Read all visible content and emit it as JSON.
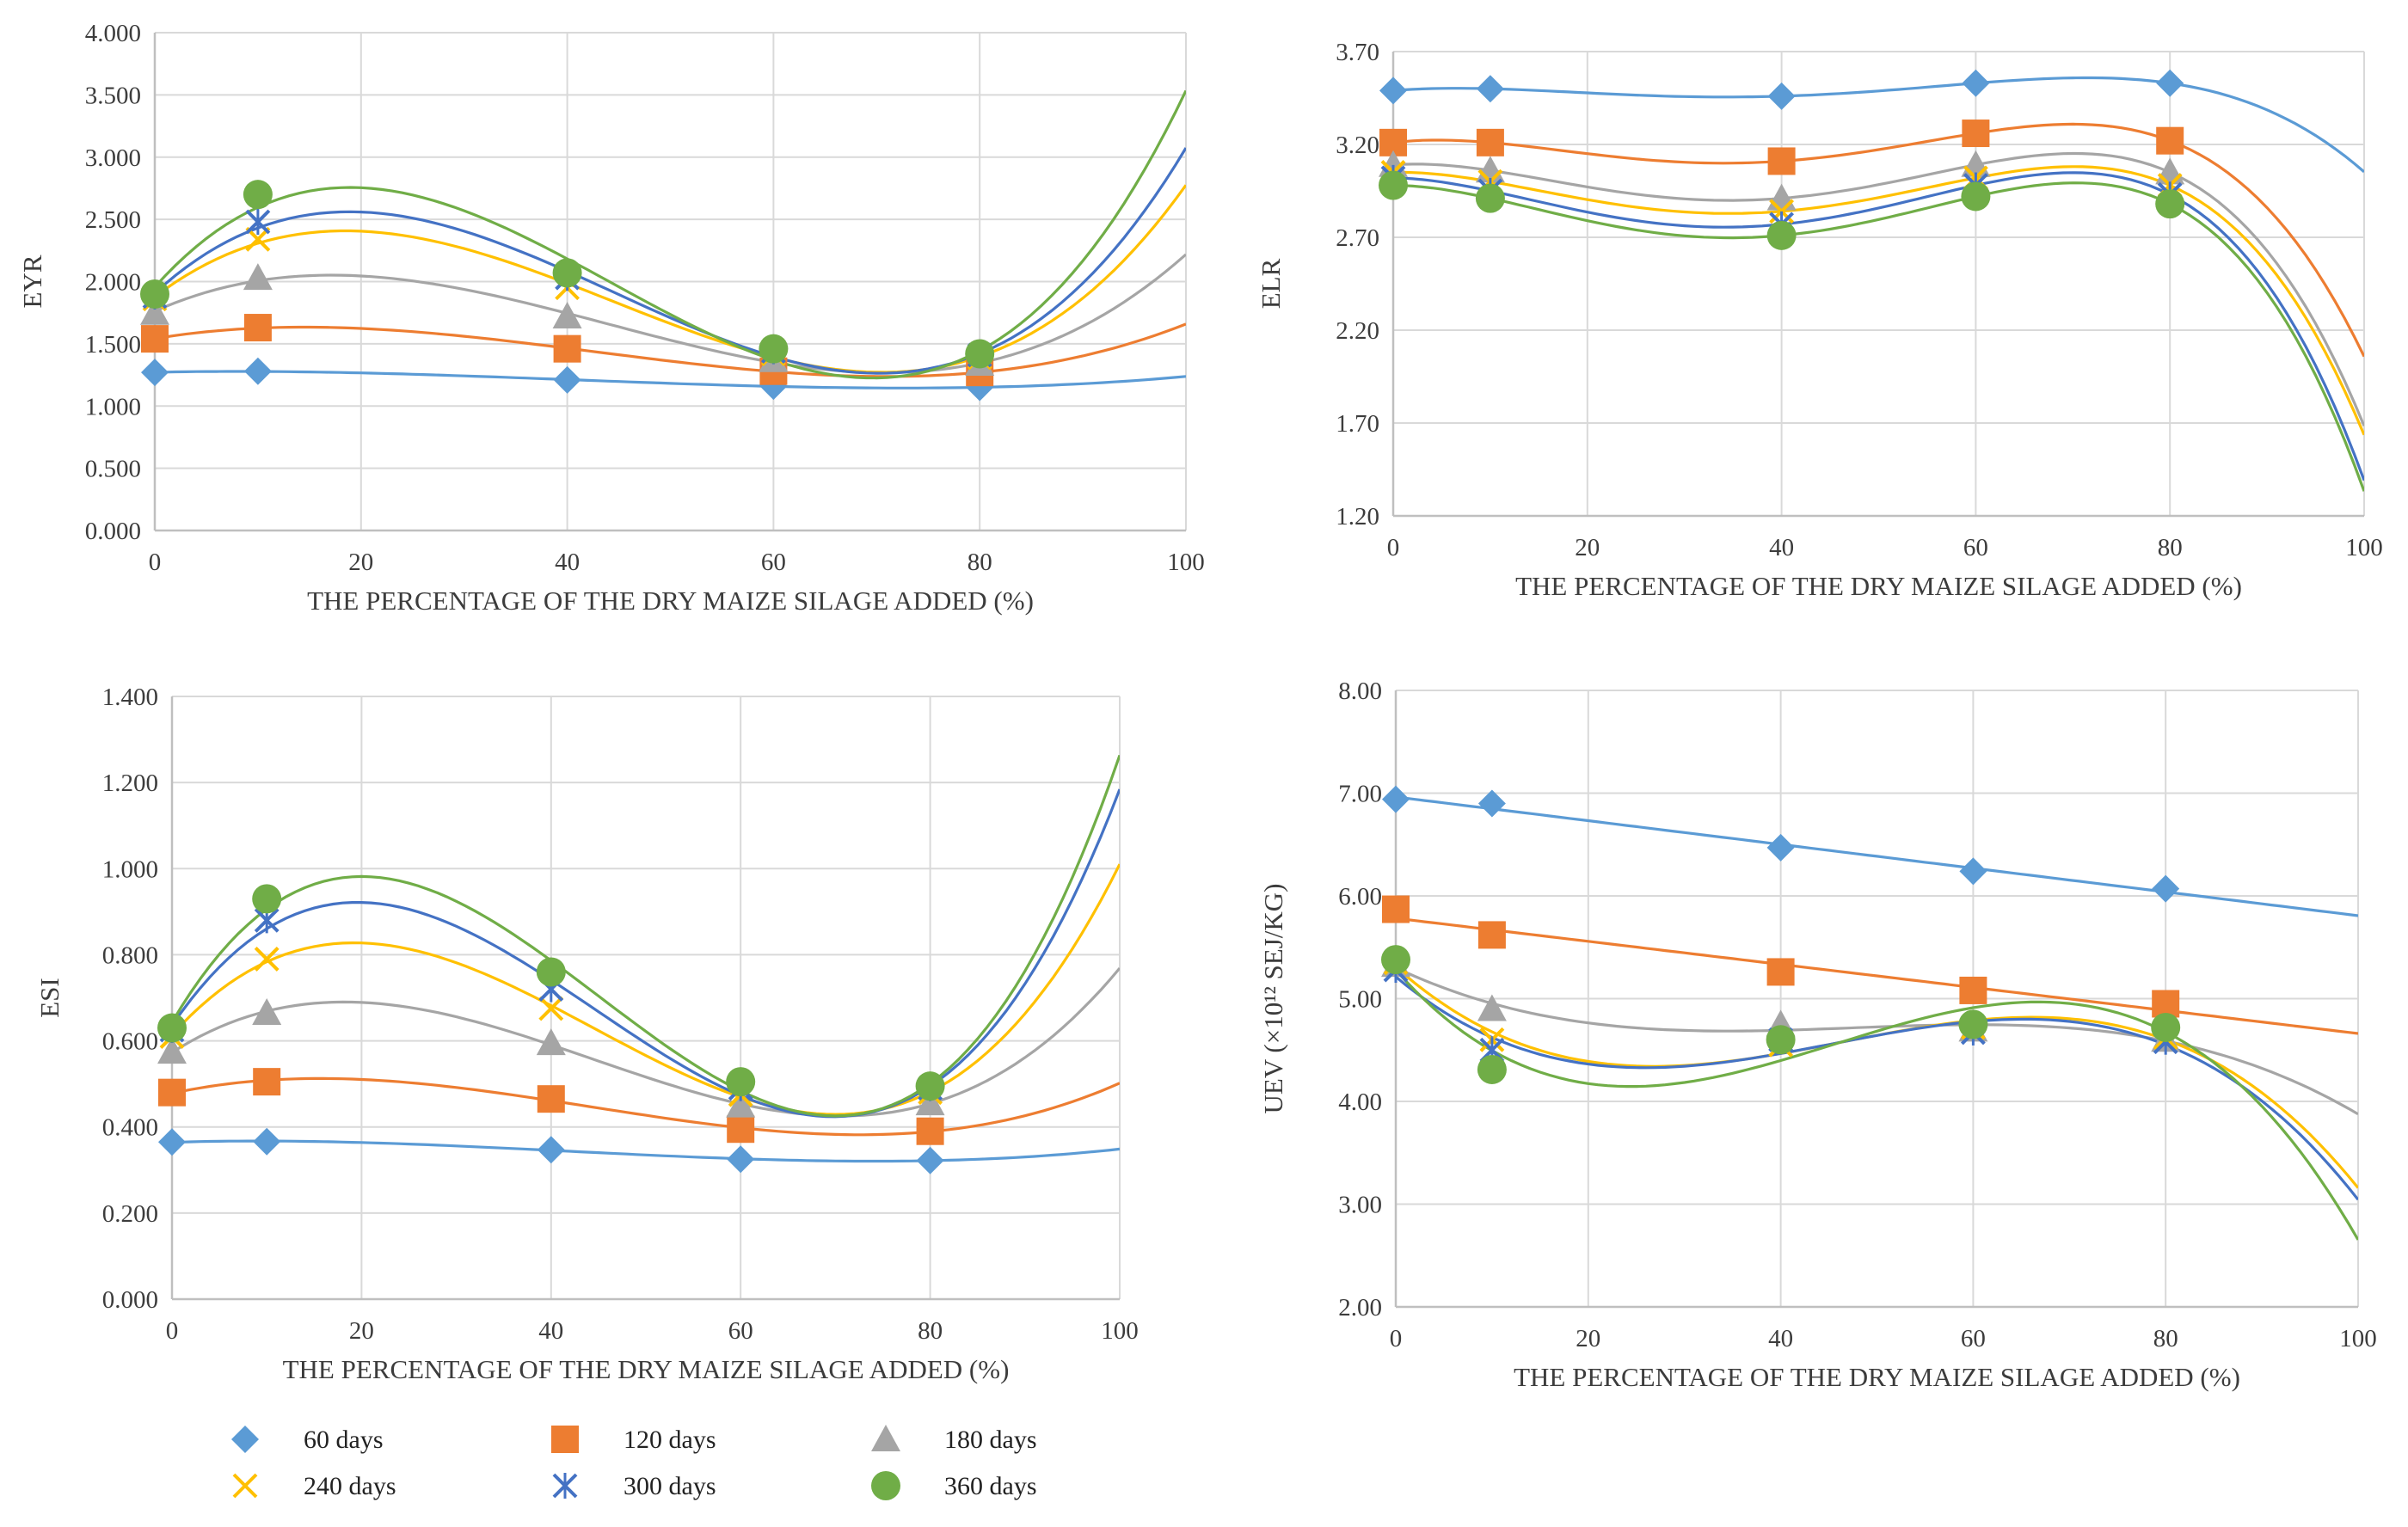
{
  "series_styles": [
    {
      "name": "60 days",
      "color": "#5b9bd5",
      "marker": "diamond"
    },
    {
      "name": "120 days",
      "color": "#ed7d31",
      "marker": "square"
    },
    {
      "name": "180 days",
      "color": "#a5a5a5",
      "marker": "triangle"
    },
    {
      "name": "240 days",
      "color": "#ffc000",
      "marker": "x"
    },
    {
      "name": "300 days",
      "color": "#4472c4",
      "marker": "star"
    },
    {
      "name": "360 days",
      "color": "#70ad47",
      "marker": "circle"
    }
  ],
  "legend": {
    "items": [
      "60 days",
      "120 days",
      "180 days",
      "240 days",
      "300 days",
      "360 days"
    ]
  },
  "chart_data": [
    {
      "type": "scatter",
      "title": "",
      "xlabel": "THE PERCENTAGE OF THE DRY MAIZE SILAGE ADDED (%)",
      "ylabel": "EYR",
      "xlim": [
        0,
        100
      ],
      "ylim": [
        0,
        4
      ],
      "x_ticks": [
        0,
        20,
        40,
        60,
        80,
        100
      ],
      "y_ticks": [
        0,
        0.5,
        1,
        1.5,
        2,
        2.5,
        3,
        3.5,
        4
      ],
      "y_tick_labels": [
        "0.000",
        "0.500",
        "1.000",
        "1.500",
        "2.000",
        "2.500",
        "3.000",
        "3.500",
        "4.000"
      ],
      "trendline": "polynomial order 3",
      "x": [
        0,
        10,
        40,
        60,
        80
      ],
      "series": [
        {
          "name": "60 days",
          "values": [
            1.27,
            1.28,
            1.21,
            1.16,
            1.15
          ]
        },
        {
          "name": "120 days",
          "values": [
            1.54,
            1.63,
            1.46,
            1.28,
            1.27
          ]
        },
        {
          "name": "180 days",
          "values": [
            1.75,
            2.03,
            1.72,
            1.37,
            1.34
          ]
        },
        {
          "name": "240 days",
          "values": [
            1.86,
            2.34,
            1.95,
            1.42,
            1.39
          ]
        },
        {
          "name": "300 days",
          "values": [
            1.88,
            2.48,
            2.03,
            1.44,
            1.41
          ]
        },
        {
          "name": "360 days",
          "values": [
            1.9,
            2.7,
            2.07,
            1.46,
            1.42
          ]
        }
      ]
    },
    {
      "type": "scatter",
      "title": "",
      "xlabel": "THE PERCENTAGE OF THE DRY MAIZE SILAGE ADDED (%)",
      "ylabel": "ELR",
      "xlim": [
        0,
        100
      ],
      "ylim": [
        1.2,
        3.7
      ],
      "x_ticks": [
        0,
        20,
        40,
        60,
        80,
        100
      ],
      "y_ticks": [
        1.2,
        1.7,
        2.2,
        2.7,
        3.2,
        3.7
      ],
      "y_tick_labels": [
        "1.20",
        "1.70",
        "2.20",
        "2.70",
        "3.20",
        "3.70"
      ],
      "trendline": "polynomial order 4",
      "x": [
        0,
        10,
        40,
        60,
        80
      ],
      "series": [
        {
          "name": "60 days",
          "values": [
            3.49,
            3.5,
            3.46,
            3.53,
            3.53
          ]
        },
        {
          "name": "120 days",
          "values": [
            3.21,
            3.21,
            3.11,
            3.26,
            3.22
          ]
        },
        {
          "name": "180 days",
          "values": [
            3.09,
            3.06,
            2.91,
            3.09,
            3.05
          ]
        },
        {
          "name": "240 days",
          "values": [
            3.05,
            3.0,
            2.84,
            3.02,
            2.98
          ]
        },
        {
          "name": "300 days",
          "values": [
            3.02,
            2.95,
            2.77,
            2.98,
            2.93
          ]
        },
        {
          "name": "360 days",
          "values": [
            2.98,
            2.91,
            2.71,
            2.92,
            2.88
          ]
        }
      ]
    },
    {
      "type": "scatter",
      "title": "",
      "xlabel": "THE PERCENTAGE OF THE DRY MAIZE SILAGE ADDED (%)",
      "ylabel": "ESI",
      "xlim": [
        0,
        100
      ],
      "ylim": [
        0,
        1.4
      ],
      "x_ticks": [
        0,
        20,
        40,
        60,
        80,
        100
      ],
      "y_ticks": [
        0,
        0.2,
        0.4,
        0.6,
        0.8,
        1,
        1.2,
        1.4
      ],
      "y_tick_labels": [
        "0.000",
        "0.200",
        "0.400",
        "0.600",
        "0.800",
        "1.000",
        "1.200",
        "1.400"
      ],
      "trendline": "polynomial order 3",
      "x": [
        0,
        10,
        40,
        60,
        80
      ],
      "series": [
        {
          "name": "60 days",
          "values": [
            0.365,
            0.366,
            0.347,
            0.325,
            0.322
          ]
        },
        {
          "name": "120 days",
          "values": [
            0.48,
            0.505,
            0.465,
            0.395,
            0.39
          ]
        },
        {
          "name": "180 days",
          "values": [
            0.575,
            0.665,
            0.595,
            0.45,
            0.455
          ]
        },
        {
          "name": "240 days",
          "values": [
            0.61,
            0.79,
            0.675,
            0.475,
            0.48
          ]
        },
        {
          "name": "300 days",
          "values": [
            0.625,
            0.88,
            0.72,
            0.49,
            0.49
          ]
        },
        {
          "name": "360 days",
          "values": [
            0.63,
            0.93,
            0.76,
            0.505,
            0.495
          ]
        }
      ]
    },
    {
      "type": "scatter",
      "title": "",
      "xlabel": "THE PERCENTAGE OF THE DRY MAIZE SILAGE ADDED (%)",
      "ylabel": "UEV (×10¹² SEJ/KG)",
      "xlim": [
        0,
        100
      ],
      "ylim": [
        2,
        8
      ],
      "x_ticks": [
        0,
        20,
        40,
        60,
        80,
        100
      ],
      "y_ticks": [
        2,
        3,
        4,
        5,
        6,
        7,
        8
      ],
      "y_tick_labels": [
        "2.00",
        "3.00",
        "4.00",
        "5.00",
        "6.00",
        "7.00",
        "8.00"
      ],
      "trendline": "60/120 days linear, others polynomial order 3",
      "x": [
        0,
        10,
        40,
        60,
        80
      ],
      "series": [
        {
          "name": "60 days",
          "values": [
            6.94,
            6.9,
            6.47,
            6.24,
            6.07
          ]
        },
        {
          "name": "120 days",
          "values": [
            5.87,
            5.62,
            5.26,
            5.08,
            4.95
          ]
        },
        {
          "name": "180 days",
          "values": [
            5.33,
            4.9,
            4.75,
            4.7,
            4.6
          ]
        },
        {
          "name": "240 days",
          "values": [
            5.35,
            4.6,
            4.55,
            4.72,
            4.62
          ]
        },
        {
          "name": "300 days",
          "values": [
            5.28,
            4.5,
            4.6,
            4.67,
            4.58
          ]
        },
        {
          "name": "360 days",
          "values": [
            5.38,
            4.31,
            4.6,
            4.75,
            4.72
          ]
        }
      ]
    }
  ]
}
